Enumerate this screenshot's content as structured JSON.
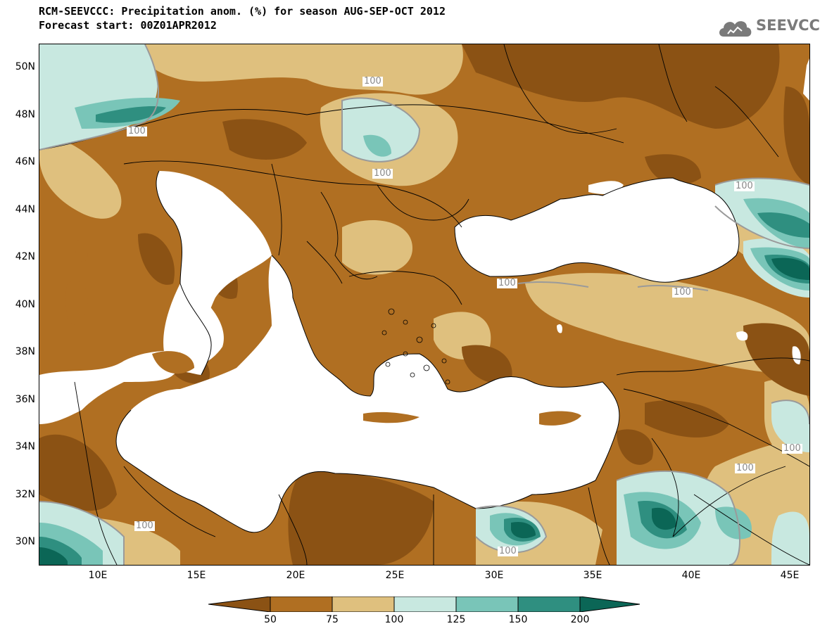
{
  "header": {
    "title": "RCM-SEEVCCC: Precipitation anom. (%) for season AUG-SEP-OCT 2012",
    "subtitle": "Forecast start: 00Z01APR2012"
  },
  "logo": {
    "text": "SEEVCCC",
    "icon": "cloud-icon"
  },
  "axes": {
    "lat_labels": [
      "50N",
      "48N",
      "46N",
      "44N",
      "42N",
      "40N",
      "38N",
      "36N",
      "34N",
      "32N",
      "30N"
    ],
    "lon_labels": [
      "10E",
      "15E",
      "20E",
      "25E",
      "30E",
      "35E",
      "40E",
      "45E"
    ]
  },
  "colorbar": {
    "tick_labels": [
      "50",
      "75",
      "100",
      "125",
      "150",
      "200"
    ],
    "colors": [
      "#8b5214",
      "#b06f22",
      "#dfc07e",
      "#c8e8e0",
      "#79c5b8",
      "#2f8f80",
      "#0b6656"
    ]
  },
  "contour_labels": [
    "100",
    "100",
    "100",
    "100",
    "100",
    "100",
    "100",
    "100",
    "100",
    "100"
  ],
  "colors": {
    "land_default": "#b06f22",
    "sea": "#ffffff",
    "frame": "#000000"
  }
}
